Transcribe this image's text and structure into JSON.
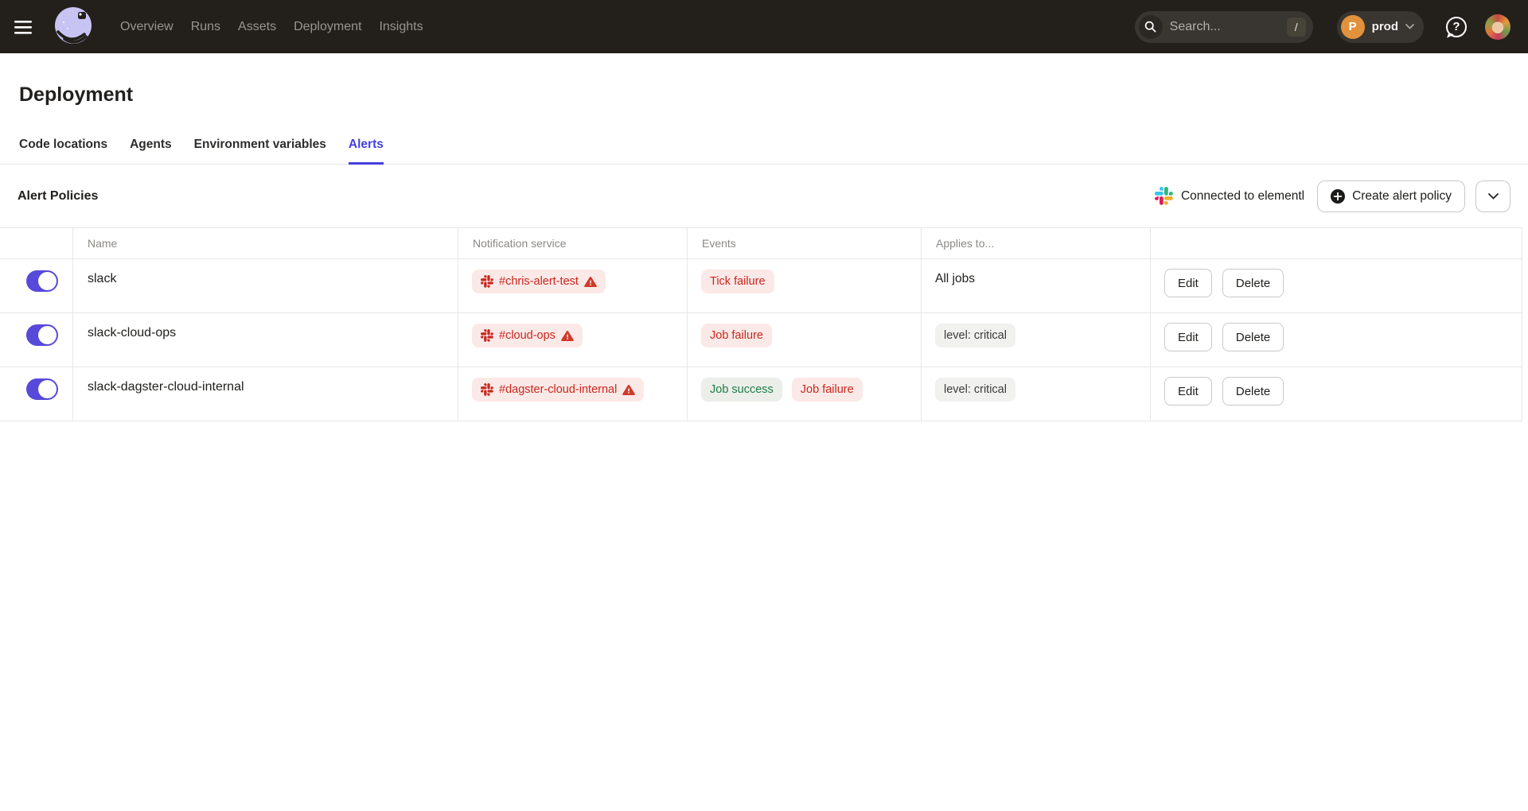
{
  "navbar": {
    "links": [
      "Overview",
      "Runs",
      "Assets",
      "Deployment",
      "Insights"
    ],
    "search": {
      "placeholder": "Search...",
      "shortcut": "/"
    },
    "org": {
      "initial": "P",
      "name": "prod"
    }
  },
  "page": {
    "title": "Deployment"
  },
  "tabs": [
    {
      "label": "Code locations",
      "active": false
    },
    {
      "label": "Agents",
      "active": false
    },
    {
      "label": "Environment variables",
      "active": false
    },
    {
      "label": "Alerts",
      "active": true
    }
  ],
  "alert_policies": {
    "heading": "Alert Policies",
    "connected_text": "Connected to elementl",
    "create_button_label": "Create alert policy",
    "table": {
      "columns": [
        "Name",
        "Notification service",
        "Events",
        "Applies to..."
      ],
      "rows": [
        {
          "enabled": true,
          "name": "slack",
          "notification": {
            "service": "slack",
            "channel": "#chris-alert-test",
            "warning": true
          },
          "events": [
            {
              "label": "Tick failure",
              "type": "failure"
            }
          ],
          "applies_to": {
            "text": "All jobs",
            "badge": false
          },
          "actions": [
            "Edit",
            "Delete"
          ]
        },
        {
          "enabled": true,
          "name": "slack-cloud-ops",
          "notification": {
            "service": "slack",
            "channel": "#cloud-ops",
            "warning": true
          },
          "events": [
            {
              "label": "Job failure",
              "type": "failure"
            }
          ],
          "applies_to": {
            "text": "level: critical",
            "badge": true
          },
          "actions": [
            "Edit",
            "Delete"
          ]
        },
        {
          "enabled": true,
          "name": "slack-dagster-cloud-internal",
          "notification": {
            "service": "slack",
            "channel": "#dagster-cloud-internal",
            "warning": true
          },
          "events": [
            {
              "label": "Job success",
              "type": "success"
            },
            {
              "label": "Job failure",
              "type": "failure"
            }
          ],
          "applies_to": {
            "text": "level: critical",
            "badge": true
          },
          "actions": [
            "Edit",
            "Delete"
          ]
        }
      ]
    }
  },
  "colors": {
    "navbar_bg": "#23201c",
    "accent": "#4440e0",
    "toggle_on": "#5749d9",
    "danger_text": "#c9271e",
    "danger_bg": "#fbe9e7",
    "success_text": "#1d7d48",
    "success_bg": "#eceeea",
    "neutral_bg": "#f1f1ef",
    "neutral_text": "#3c3b38",
    "org_avatar": "#e2923c",
    "warning_icon": "#d13a2b"
  }
}
